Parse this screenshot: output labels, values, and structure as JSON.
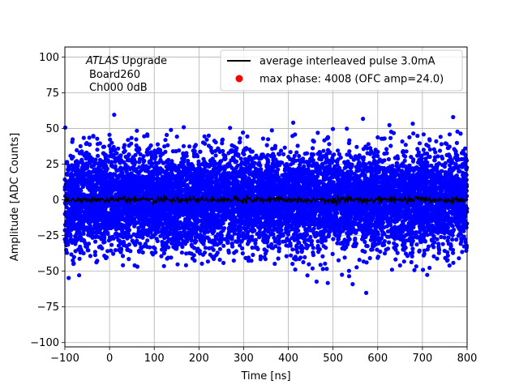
{
  "chart_data": {
    "type": "scatter",
    "title": "",
    "xlabel": "Time [ns]",
    "ylabel": "Amplitude [ADC Counts]",
    "xlim": [
      -100,
      800
    ],
    "ylim": [
      -103,
      107
    ],
    "xticks": [
      -100,
      0,
      100,
      200,
      300,
      400,
      500,
      600,
      700,
      800
    ],
    "xtick_labels": [
      "−100",
      "0",
      "100",
      "200",
      "300",
      "400",
      "500",
      "600",
      "700",
      "800"
    ],
    "yticks": [
      -100,
      -75,
      -50,
      -25,
      0,
      25,
      50,
      75,
      100
    ],
    "ytick_labels": [
      "−100",
      "−75",
      "−50",
      "−25",
      "0",
      "25",
      "50",
      "75",
      "100"
    ],
    "grid": true,
    "legend_position": "top-right",
    "annotation": {
      "line1_italic": "ATLAS",
      "line1_rest": " Upgrade",
      "line2": "Board260",
      "line3": "Ch000 0dB"
    },
    "series": [
      {
        "name": "average interleaved pulse 3.0mA",
        "kind": "line",
        "color": "#000000",
        "mean": 0,
        "noise_sigma": 1.2
      },
      {
        "name": "max phase: 4008 (OFC amp=24.0)",
        "kind": "scatter",
        "color": "#0000ff",
        "legend_marker_color": "#ff0000",
        "point_count": 9000,
        "x_range": [
          -100,
          800
        ],
        "mean": 0,
        "sigma": 17,
        "amplitude_range": [
          -68,
          68
        ]
      }
    ]
  }
}
